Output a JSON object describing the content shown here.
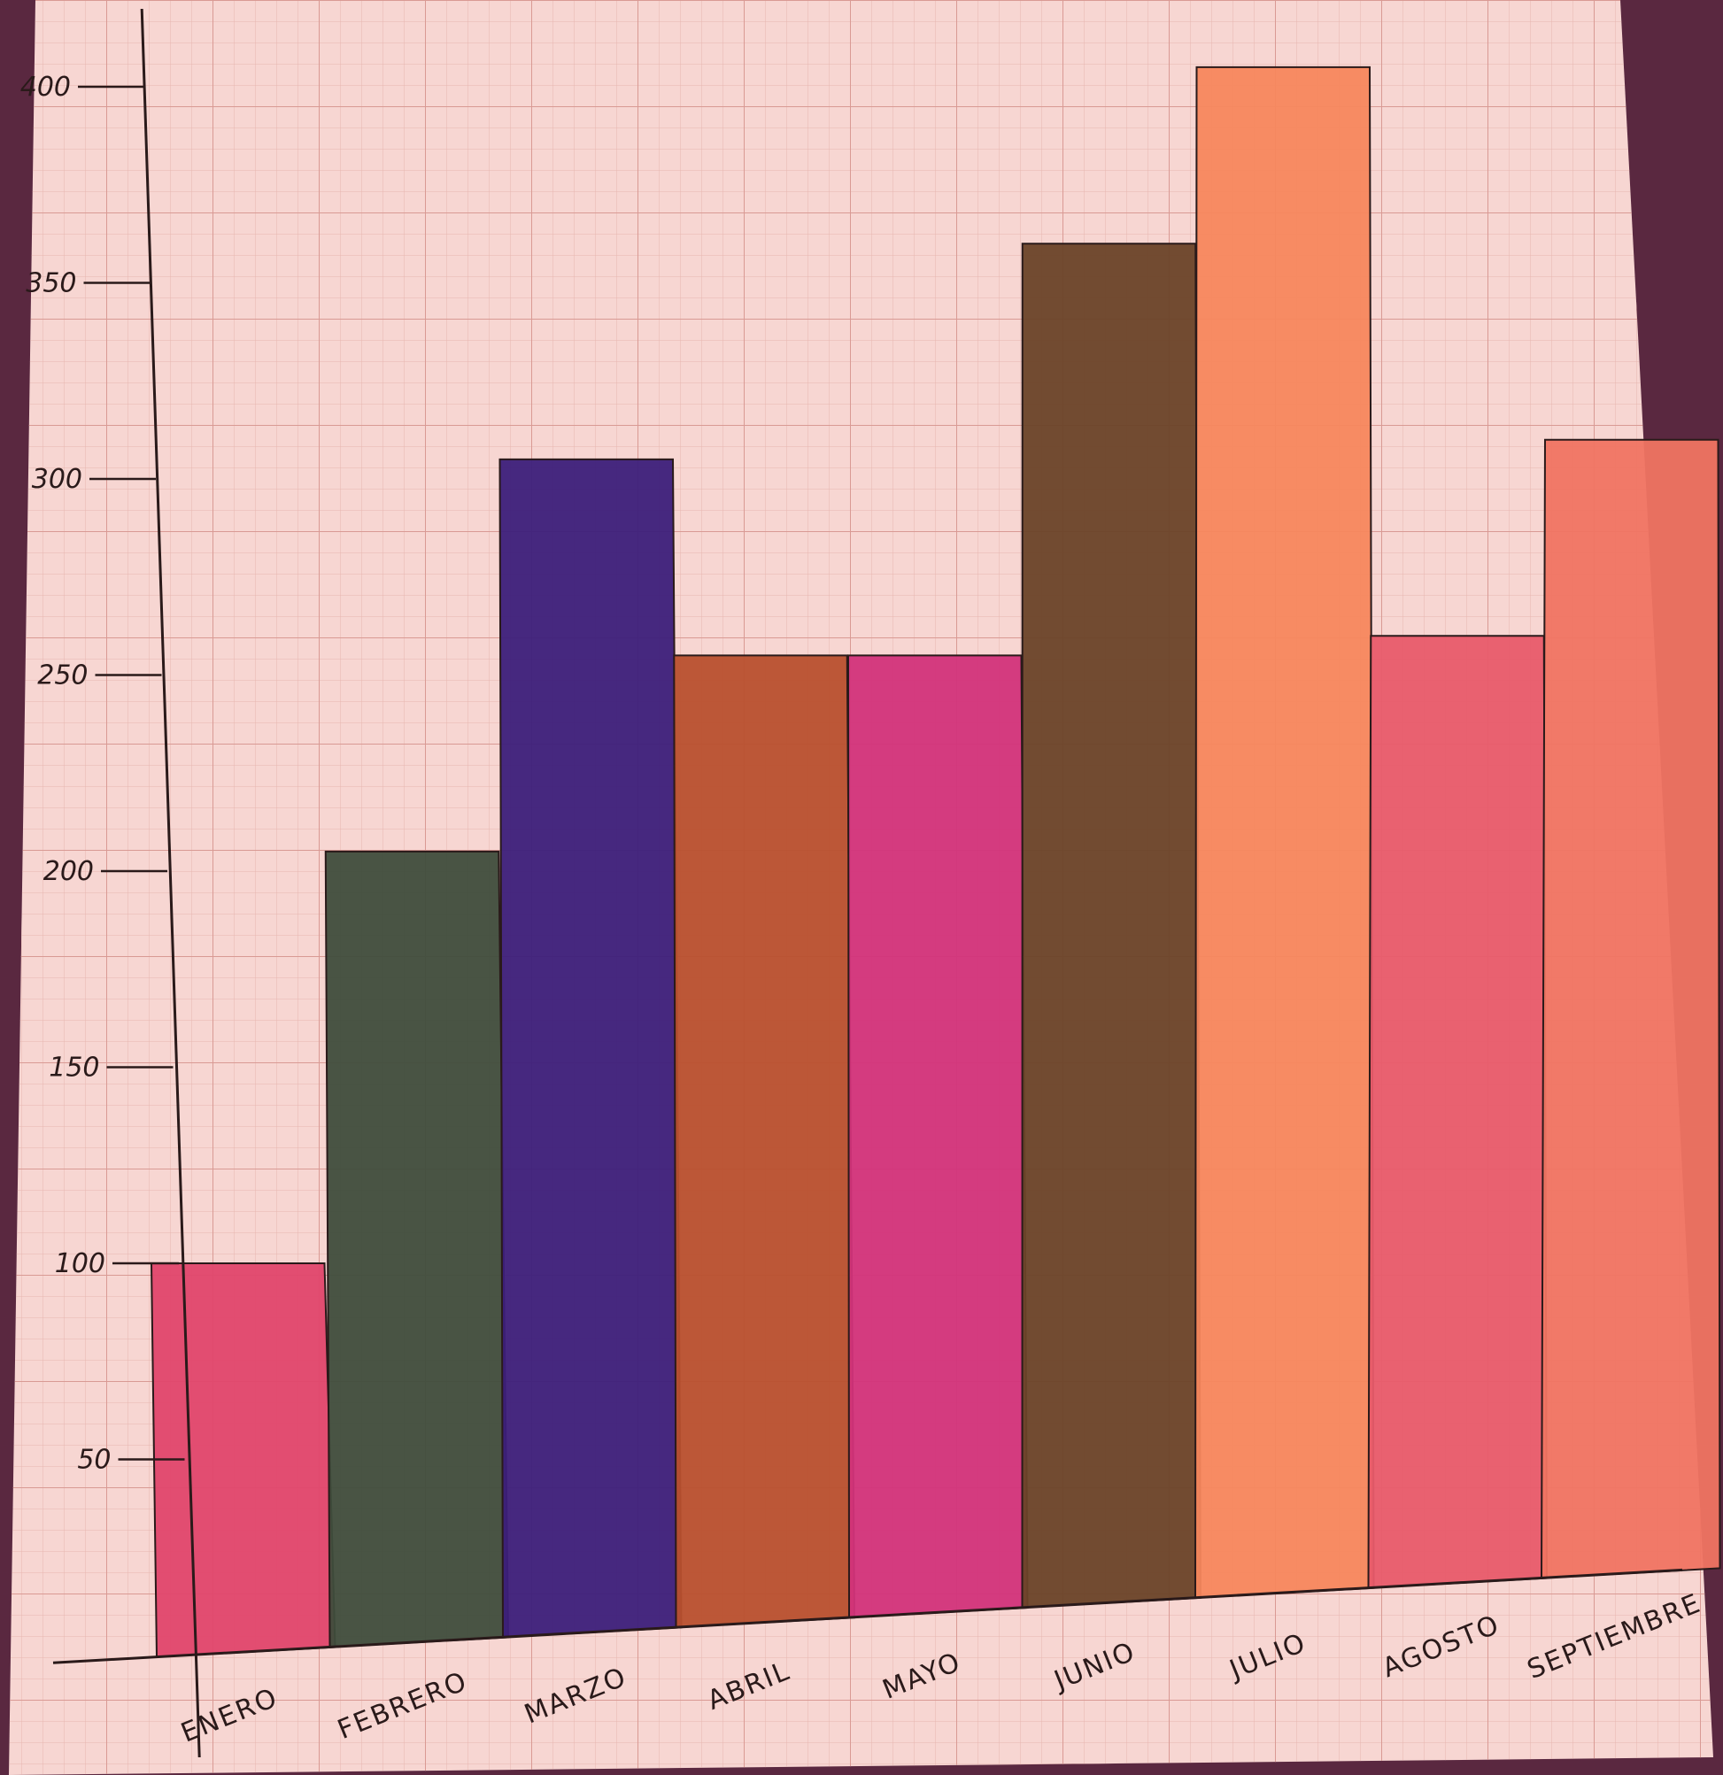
{
  "chart_data": {
    "type": "bar",
    "title": "",
    "xlabel": "",
    "ylabel": "",
    "categories": [
      "ENERO",
      "FEBRERO",
      "MARZO",
      "ABRIL",
      "MAYO",
      "JUNIO",
      "JULIO",
      "AGOSTO",
      "SEPTIEMBRE"
    ],
    "values": [
      100,
      205,
      305,
      255,
      255,
      360,
      405,
      260,
      310
    ],
    "yticks": [
      50,
      100,
      150,
      200,
      250,
      300,
      350,
      400
    ],
    "ylim": [
      0,
      400
    ],
    "grid": true,
    "legend": "none",
    "colors": [
      "#e0466c",
      "#3f4d3c",
      "#3c1f7a",
      "#b8502e",
      "#d2337a",
      "#6a4328",
      "#f7875d",
      "#e85b6a",
      "#f07462"
    ]
  },
  "colors": {
    "paper": "#f7d6d2",
    "grid_minor": "#e7b6b0",
    "grid_major": "#d99a94",
    "ink": "#2a1a1a",
    "background": "#5a2840"
  }
}
